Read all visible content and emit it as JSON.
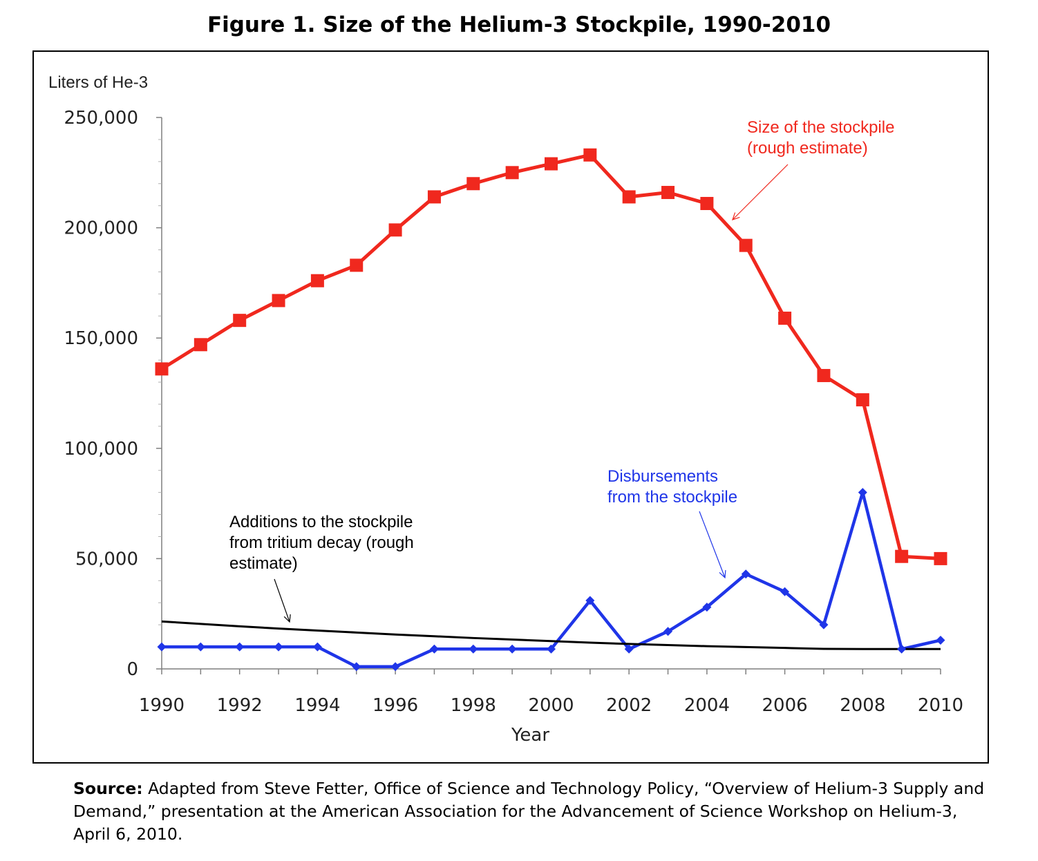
{
  "figure": {
    "title": "Figure 1. Size of the Helium-3 Stockpile, 1990-2010"
  },
  "source": {
    "label": "Source:",
    "text": "Adapted from Steve Fetter, Office of Science and Technology Policy, “Overview of Helium-3 Supply and Demand,” presentation at the American Association for the Advancement of Science Workshop on Helium-3, April 6, 2010."
  },
  "chart_data": {
    "type": "line",
    "title": "Figure 1. Size of the Helium-3 Stockpile, 1990-2010",
    "ylabel": "Liters of He-3",
    "xlabel": "Year",
    "ylim": [
      0,
      250000
    ],
    "xlim": [
      1990,
      2010
    ],
    "yticks": [
      0,
      50000,
      100000,
      150000,
      200000,
      250000
    ],
    "ytick_labels": [
      "0",
      "50,000",
      "100,000",
      "150,000",
      "200,000",
      "250,000"
    ],
    "xticks": [
      1990,
      1992,
      1994,
      1996,
      1998,
      2000,
      2002,
      2004,
      2006,
      2008,
      2010
    ],
    "xtick_labels": [
      "1990",
      "1992",
      "1994",
      "1996",
      "1998",
      "2000",
      "2002",
      "2004",
      "2006",
      "2008",
      "2010"
    ],
    "grid": false,
    "x": [
      1990,
      1991,
      1992,
      1993,
      1994,
      1995,
      1996,
      1997,
      1998,
      1999,
      2000,
      2001,
      2002,
      2003,
      2004,
      2005,
      2006,
      2007,
      2008,
      2009,
      2010
    ],
    "series": [
      {
        "name": "Size of the stockpile (rough estimate)",
        "color": "#f0281e",
        "marker": "square",
        "values": [
          136000,
          147000,
          158000,
          167000,
          176000,
          183000,
          199000,
          214000,
          220000,
          225000,
          229000,
          233000,
          214000,
          216000,
          211000,
          192000,
          159000,
          133000,
          122000,
          51000,
          50000
        ]
      },
      {
        "name": "Disbursements from the stockpile",
        "color": "#1f35e8",
        "marker": "diamond",
        "values": [
          10000,
          10000,
          10000,
          10000,
          10000,
          1000,
          1000,
          9000,
          9000,
          9000,
          9000,
          31000,
          9000,
          17000,
          28000,
          43000,
          35000,
          20000,
          80000,
          9000,
          13000
        ]
      },
      {
        "name": "Additions to the stockpile from tritium decay (rough estimate)",
        "color": "#000000",
        "marker": "none",
        "values": [
          21500,
          20400,
          19300,
          18300,
          17400,
          16500,
          15600,
          14800,
          14000,
          13300,
          12600,
          11900,
          11300,
          10800,
          10300,
          9900,
          9500,
          9100,
          9000,
          9000,
          9000
        ]
      }
    ],
    "annotations": [
      {
        "series": 0,
        "lines": [
          "Size of the stockpile",
          "(rough estimate)"
        ],
        "color": "#f0281e"
      },
      {
        "series": 1,
        "lines": [
          "Disbursements",
          "from the stockpile"
        ],
        "color": "#1f35e8"
      },
      {
        "series": 2,
        "lines": [
          "Additions to the stockpile",
          "from tritium decay (rough",
          "estimate)"
        ],
        "color": "#000000"
      }
    ]
  }
}
